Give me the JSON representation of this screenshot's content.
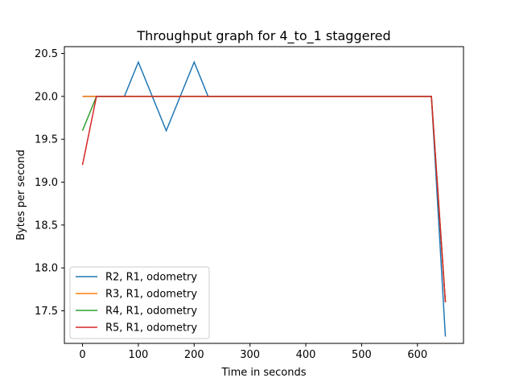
{
  "chart_data": {
    "type": "line",
    "title": "Throughput graph for 4_to_1 staggered",
    "xlabel": "Time in seconds",
    "ylabel": "Bytes per second",
    "xlim": [
      -32.5,
      682.5
    ],
    "ylim": [
      17.12,
      20.58
    ],
    "xticks": [
      0,
      100,
      200,
      300,
      400,
      500,
      600
    ],
    "yticks": [
      17.5,
      18.0,
      18.5,
      19.0,
      19.5,
      20.0,
      20.5
    ],
    "ytick_labels": [
      "17.5",
      "18.0",
      "18.5",
      "19.0",
      "19.5",
      "20.0",
      "20.5"
    ],
    "grid": false,
    "legend_position": "lower-left",
    "series": [
      {
        "name": "R2, R1, odometry",
        "color": "#1f77b4",
        "x": [
          0,
          25,
          75,
          100,
          150,
          200,
          225,
          625,
          650
        ],
        "y": [
          20.0,
          20.0,
          20.0,
          20.4,
          19.6,
          20.4,
          20.0,
          20.0,
          17.2
        ]
      },
      {
        "name": "R3, R1, odometry",
        "color": "#ff7f0e",
        "x": [
          0,
          25,
          625,
          650
        ],
        "y": [
          20.0,
          20.0,
          20.0,
          17.6
        ]
      },
      {
        "name": "R4, R1, odometry",
        "color": "#2ca02c",
        "x": [
          0,
          25,
          625,
          650
        ],
        "y": [
          19.6,
          20.0,
          20.0,
          17.6
        ]
      },
      {
        "name": "R5, R1, odometry",
        "color": "#d62728",
        "x": [
          0,
          25,
          625,
          650
        ],
        "y": [
          19.2,
          20.0,
          20.0,
          17.6
        ]
      }
    ]
  }
}
